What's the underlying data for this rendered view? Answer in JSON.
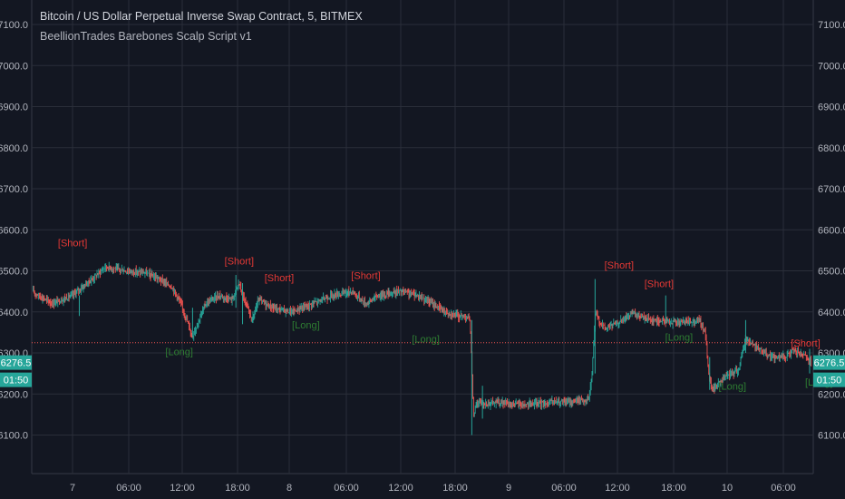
{
  "header": {
    "title": "Bitcoin / US Dollar Perpetual Inverse Swap Contract, 5, BITMEX",
    "study": "BeellionTrades Barebones Scalp Script v1"
  },
  "price_tag": {
    "price": "6276.5",
    "countdown": "01:50",
    "color": "#26a69a"
  },
  "colors": {
    "background": "#131722",
    "grid": "#2a2e39",
    "up": "#26a69a",
    "down": "#ef5350",
    "short_label": "#e53935",
    "long_label": "#2e7d32",
    "ref_line": "#ef5350"
  },
  "chart_data": {
    "type": "candlestick",
    "y_ticks": [
      "6100.0",
      "6200.0",
      "6300.0",
      "6400.0",
      "6500.0",
      "6600.0",
      "6700.0",
      "6800.0",
      "6900.0",
      "7000.0",
      "7100.0"
    ],
    "ylim": [
      6040,
      7150
    ],
    "x_ticks": [
      "7",
      "06:00",
      "12:00",
      "18:00",
      "8",
      "06:00",
      "12:00",
      "18:00",
      "9",
      "06:00",
      "12:00",
      "18:00",
      "10",
      "06:00"
    ],
    "grid": true,
    "horizontal_line": 6325,
    "last_price": 6276.5,
    "price_path": [
      [
        0,
        6450
      ],
      [
        3,
        6420
      ],
      [
        6,
        6440
      ],
      [
        9,
        6480
      ],
      [
        11,
        6510
      ],
      [
        14,
        6500
      ],
      [
        17,
        6495
      ],
      [
        19,
        6480
      ],
      [
        21,
        6460
      ],
      [
        22,
        6430
      ],
      [
        23,
        6390
      ],
      [
        24,
        6340
      ],
      [
        25,
        6380
      ],
      [
        26,
        6420
      ],
      [
        28,
        6440
      ],
      [
        30,
        6430
      ],
      [
        31,
        6470
      ],
      [
        32,
        6420
      ],
      [
        33,
        6380
      ],
      [
        34,
        6430
      ],
      [
        36,
        6410
      ],
      [
        39,
        6400
      ],
      [
        42,
        6420
      ],
      [
        45,
        6440
      ],
      [
        48,
        6450
      ],
      [
        50,
        6420
      ],
      [
        52,
        6440
      ],
      [
        55,
        6450
      ],
      [
        58,
        6440
      ],
      [
        60,
        6420
      ],
      [
        62,
        6400
      ],
      [
        64,
        6390
      ],
      [
        65,
        6390
      ],
      [
        65.7,
        6380
      ],
      [
        66.2,
        6150
      ],
      [
        66.7,
        6180
      ],
      [
        68,
        6175
      ],
      [
        70,
        6180
      ],
      [
        72,
        6175
      ],
      [
        75,
        6175
      ],
      [
        78,
        6180
      ],
      [
        80,
        6180
      ],
      [
        82,
        6185
      ],
      [
        83.5,
        6185
      ],
      [
        84,
        6250
      ],
      [
        84.5,
        6400
      ],
      [
        85,
        6380
      ],
      [
        86,
        6360
      ],
      [
        88,
        6375
      ],
      [
        90,
        6395
      ],
      [
        93,
        6380
      ],
      [
        96,
        6375
      ],
      [
        98,
        6375
      ],
      [
        100,
        6380
      ],
      [
        101,
        6350
      ],
      [
        101.5,
        6250
      ],
      [
        102,
        6210
      ],
      [
        104,
        6240
      ],
      [
        106,
        6260
      ],
      [
        107,
        6335
      ],
      [
        109,
        6310
      ],
      [
        111,
        6290
      ],
      [
        113,
        6290
      ],
      [
        114,
        6305
      ],
      [
        115,
        6300
      ],
      [
        116,
        6290
      ],
      [
        116.8,
        6276.5
      ]
    ],
    "signals": [
      {
        "text": "[Short]",
        "t": 6,
        "price": 6560,
        "kind": "short"
      },
      {
        "text": "[Short]",
        "t": 31,
        "price": 6515,
        "kind": "short"
      },
      {
        "text": "[Short]",
        "t": 37,
        "price": 6475,
        "kind": "short"
      },
      {
        "text": "[Short]",
        "t": 50,
        "price": 6480,
        "kind": "short"
      },
      {
        "text": "[Short]",
        "t": 88,
        "price": 6505,
        "kind": "short"
      },
      {
        "text": "[Short]",
        "t": 94,
        "price": 6460,
        "kind": "short"
      },
      {
        "text": "[Short]",
        "t": 116,
        "price": 6315,
        "kind": "short"
      },
      {
        "text": "[Long]",
        "t": 22,
        "price": 6295,
        "kind": "long"
      },
      {
        "text": "[Long]",
        "t": 41,
        "price": 6360,
        "kind": "long"
      },
      {
        "text": "[Long]",
        "t": 59,
        "price": 6325,
        "kind": "long"
      },
      {
        "text": "[Long]",
        "t": 97,
        "price": 6330,
        "kind": "long"
      },
      {
        "text": "[Long]",
        "t": 105,
        "price": 6210,
        "kind": "long"
      },
      {
        "text": "[Long]",
        "t": 118,
        "price": 6220,
        "kind": "long"
      }
    ]
  }
}
